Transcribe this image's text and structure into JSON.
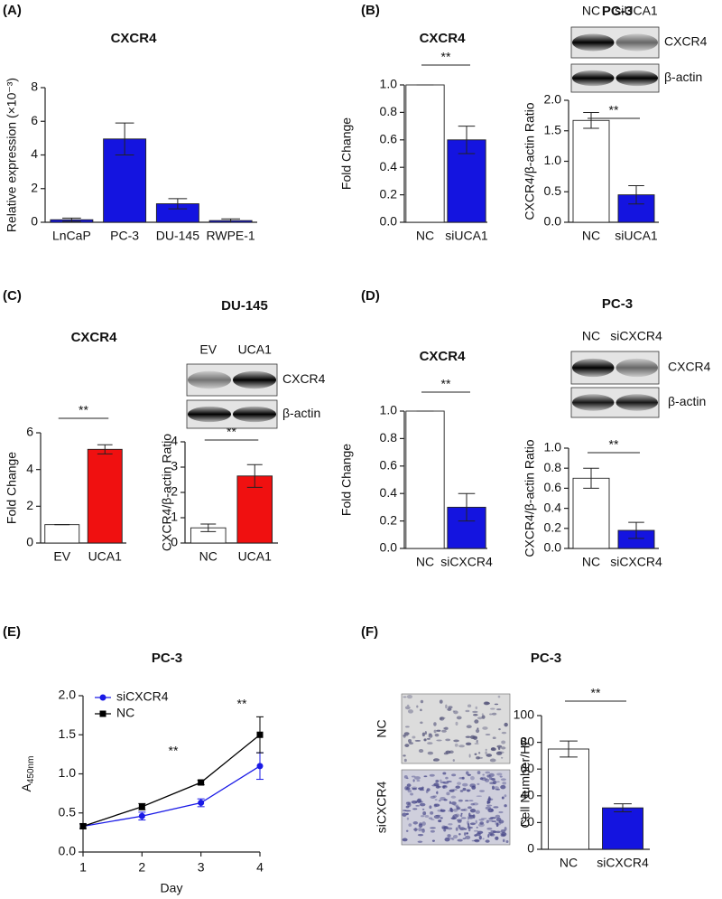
{
  "chart_data": [
    {
      "type": "bar",
      "panel": "(A)",
      "title": "CXCR4",
      "ylabel": "Relative expression (×10⁻³)",
      "categories": [
        "LnCaP",
        "PC-3",
        "DU-145",
        "RWPE-1"
      ],
      "values": [
        0.15,
        4.95,
        1.1,
        0.1
      ],
      "errors": [
        0.1,
        0.95,
        0.3,
        0.1
      ],
      "colors": [
        "#1414e0",
        "#1414e0",
        "#1414e0",
        "#1414e0"
      ],
      "ylim": [
        0,
        8
      ],
      "yticks": [
        0,
        2,
        4,
        6,
        8
      ]
    },
    {
      "type": "bar",
      "panel": "(B)",
      "title": "CXCR4",
      "ylabel": "Fold Change",
      "annotation": "**",
      "categories": [
        "NC",
        "siUCA1"
      ],
      "values": [
        1.0,
        0.6
      ],
      "errors": [
        0,
        0.1
      ],
      "colors": [
        "#ffffff",
        "#1414e0"
      ],
      "ylim": [
        0,
        1.0
      ],
      "yticks": [
        {
          "value": 0,
          "label": "0.0"
        },
        {
          "value": 0.2,
          "label": "0.2"
        },
        {
          "value": 0.4,
          "label": "0.4"
        },
        {
          "value": 0.6,
          "label": "0.6"
        },
        {
          "value": 0.8,
          "label": "0.8"
        },
        {
          "value": 1.0,
          "label": "1.0"
        }
      ]
    },
    {
      "type": "bar",
      "group_title": "PC-3",
      "ylabel": "CXCR4/β-actin Ratio",
      "annotation": "**",
      "blot": {
        "lanes": [
          "NC",
          "siUCA1"
        ],
        "bands": [
          "CXCR4",
          "β-actin"
        ]
      },
      "categories": [
        "NC",
        "siUCA1"
      ],
      "values": [
        1.67,
        0.45
      ],
      "errors": [
        0.13,
        0.15
      ],
      "colors": [
        "#ffffff",
        "#1414e0"
      ],
      "ylim": [
        0,
        2.0
      ],
      "yticks": [
        {
          "value": 0,
          "label": "0.0"
        },
        {
          "value": 0.5,
          "label": "0.5"
        },
        {
          "value": 1.0,
          "label": "1.0"
        },
        {
          "value": 1.5,
          "label": "1.5"
        },
        {
          "value": 2.0,
          "label": "2.0"
        }
      ]
    },
    {
      "type": "bar",
      "panel": "(C)",
      "group_title": "DU-145",
      "title": "CXCR4",
      "ylabel": "Fold Change",
      "annotation": "**",
      "categories": [
        "EV",
        "UCA1"
      ],
      "values": [
        1,
        5.1
      ],
      "errors": [
        0,
        0.25
      ],
      "colors": [
        "#ffffff",
        "#f01010"
      ],
      "ylim": [
        0,
        6
      ],
      "yticks": [
        0,
        2,
        4,
        6
      ]
    },
    {
      "type": "bar",
      "ylabel": "CXCR4/β-actin Ratio",
      "annotation": "**",
      "blot": {
        "lanes": [
          "EV",
          "UCA1"
        ],
        "bands": [
          "CXCR4",
          "β-actin"
        ]
      },
      "categories": [
        "NC",
        "UCA1"
      ],
      "values": [
        0.6,
        2.65
      ],
      "errors": [
        0.15,
        0.45
      ],
      "colors": [
        "#ffffff",
        "#f01010"
      ],
      "ylim": [
        0,
        4
      ],
      "yticks": [
        0,
        1,
        2,
        3,
        4
      ]
    },
    {
      "type": "bar",
      "panel": "(D)",
      "title": "CXCR4",
      "ylabel": "Fold Change",
      "annotation": "**",
      "categories": [
        "NC",
        "siCXCR4"
      ],
      "values": [
        1.0,
        0.3
      ],
      "errors": [
        0,
        0.1
      ],
      "colors": [
        "#ffffff",
        "#1414e0"
      ],
      "ylim": [
        0,
        1.0
      ],
      "yticks": [
        {
          "value": 0,
          "label": "0.0"
        },
        {
          "value": 0.2,
          "label": "0.2"
        },
        {
          "value": 0.4,
          "label": "0.4"
        },
        {
          "value": 0.6,
          "label": "0.6"
        },
        {
          "value": 0.8,
          "label": "0.8"
        },
        {
          "value": 1.0,
          "label": "1.0"
        }
      ]
    },
    {
      "type": "bar",
      "group_title": "PC-3",
      "ylabel": "CXCR4/β-actin Ratio",
      "annotation": "**",
      "blot": {
        "lanes": [
          "NC",
          "siCXCR4"
        ],
        "bands": [
          "CXCR4",
          "β-actin"
        ]
      },
      "categories": [
        "NC",
        "siCXCR4"
      ],
      "values": [
        0.7,
        0.18
      ],
      "errors": [
        0.1,
        0.08
      ],
      "colors": [
        "#ffffff",
        "#1414e0"
      ],
      "ylim": [
        0,
        1.0
      ],
      "yticks": [
        {
          "value": 0,
          "label": "0.0"
        },
        {
          "value": 0.2,
          "label": "0.2"
        },
        {
          "value": 0.4,
          "label": "0.4"
        },
        {
          "value": 0.6,
          "label": "0.6"
        },
        {
          "value": 0.8,
          "label": "0.8"
        },
        {
          "value": 1.0,
          "label": "1.0"
        }
      ]
    },
    {
      "type": "line",
      "panel": "(E)",
      "title": "PC-3",
      "xlabel": "Day",
      "ylabel": "A",
      "ylabel_sub": "450nm",
      "annotations": [
        "**",
        "**"
      ],
      "legend": "upper left",
      "x": [
        1,
        2,
        3,
        4
      ],
      "xlim": [
        1,
        4
      ],
      "xticks": [
        1,
        2,
        3,
        4
      ],
      "ylim": [
        0,
        2.0
      ],
      "yticks": [
        {
          "value": 0,
          "label": "0.0"
        },
        {
          "value": 0.5,
          "label": "0.5"
        },
        {
          "value": 1.0,
          "label": "1.0"
        },
        {
          "value": 1.5,
          "label": "1.5"
        },
        {
          "value": 2.0,
          "label": "2.0"
        }
      ],
      "series": [
        {
          "name": "siCXCR4",
          "color": "#1a1ae6",
          "marker": "circle",
          "values": [
            0.33,
            0.46,
            0.63,
            1.1
          ],
          "errors": [
            0.03,
            0.05,
            0.05,
            0.17
          ]
        },
        {
          "name": "NC",
          "color": "#000000",
          "marker": "square",
          "values": [
            0.33,
            0.58,
            0.89,
            1.5
          ],
          "errors": [
            0.03,
            0.04,
            0.03,
            0.23
          ]
        }
      ]
    },
    {
      "type": "bar",
      "panel": "(F)",
      "title": "PC-3",
      "ylabel": "Cell Number/HP",
      "annotation": "**",
      "images": [
        "NC",
        "siCXCR4"
      ],
      "categories": [
        "NC",
        "siCXCR4"
      ],
      "values": [
        75,
        31
      ],
      "errors": [
        6,
        3
      ],
      "colors": [
        "#ffffff",
        "#1414e0"
      ],
      "ylim": [
        0,
        100
      ],
      "yticks": [
        0,
        20,
        40,
        60,
        80,
        100
      ]
    }
  ]
}
